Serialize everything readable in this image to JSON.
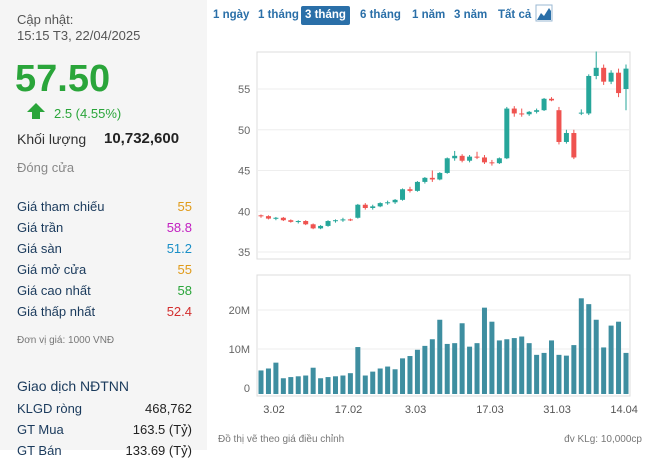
{
  "update": {
    "label": "Cập nhật:",
    "time": "15:15 T3, 22/04/2025"
  },
  "price": "57.50",
  "change": "2.5 (4.55%)",
  "volume": {
    "label": "Khối lượng",
    "value": "10,732,600"
  },
  "status": "Đóng cửa",
  "stats": [
    {
      "label": "Giá tham chiếu",
      "value": "55",
      "color": "#e09b1a"
    },
    {
      "label": "Giá trần",
      "value": "58.8",
      "color": "#c21fc1"
    },
    {
      "label": "Giá sàn",
      "value": "51.2",
      "color": "#1a8fc7"
    },
    {
      "label": "Giá mở cửa",
      "value": "55",
      "color": "#e09b1a"
    },
    {
      "label": "Giá cao nhất",
      "value": "58",
      "color": "#2aa53a"
    },
    {
      "label": "Giá thấp nhất",
      "value": "52.4",
      "color": "#d32f2f"
    }
  ],
  "unit_note": "Đơn vị giá: 1000 VNĐ",
  "foreign": {
    "title": "Giao dịch NĐTNN",
    "rows": [
      {
        "label": "KLGD ròng",
        "value": "468,762"
      },
      {
        "label": "GT Mua",
        "value": "163.5 (Tỷ)"
      },
      {
        "label": "GT Bán",
        "value": "133.69 (Tỷ)"
      }
    ]
  },
  "tabs": [
    "1 ngày",
    "1 tháng",
    "3 tháng",
    "6 tháng",
    "1 năm",
    "3 năm",
    "Tất cả"
  ],
  "active_tab": "3 tháng",
  "footer_left": "Đồ thị vẽ theo giá điều chỉnh",
  "footer_right": "đv KLg: 10,000cp",
  "colors": {
    "up": "#26a69a",
    "down": "#ef5350",
    "volume": "#3e8ea0",
    "accent": "#2a6fa8"
  },
  "chart_data": {
    "type": "candlestick",
    "price_ticks": [
      "55",
      "50",
      "45",
      "40",
      "35"
    ],
    "volume_ticks": [
      "20M",
      "10M",
      "0"
    ],
    "x_ticks": [
      "3.02",
      "17.02",
      "3.03",
      "17.03",
      "31.03",
      "14.04"
    ],
    "candles": [
      [
        39.5,
        39.6,
        39.2,
        39.4
      ],
      [
        39.4,
        39.5,
        39.0,
        39.1
      ],
      [
        39.1,
        39.3,
        38.9,
        39.2
      ],
      [
        39.2,
        39.3,
        38.8,
        38.9
      ],
      [
        38.9,
        39.0,
        38.6,
        38.7
      ],
      [
        38.7,
        38.9,
        38.5,
        38.8
      ],
      [
        38.8,
        38.9,
        38.3,
        38.4
      ],
      [
        38.4,
        38.5,
        37.8,
        37.9
      ],
      [
        37.9,
        38.3,
        37.8,
        38.2
      ],
      [
        38.2,
        38.9,
        38.1,
        38.8
      ],
      [
        38.8,
        39.0,
        38.6,
        38.9
      ],
      [
        38.9,
        39.2,
        38.7,
        39.0
      ],
      [
        39.0,
        39.1,
        38.8,
        38.9
      ],
      [
        39.2,
        40.9,
        39.1,
        40.8
      ],
      [
        40.8,
        41.0,
        40.2,
        40.4
      ],
      [
        40.4,
        40.8,
        40.2,
        40.6
      ],
      [
        40.6,
        41.1,
        40.5,
        41.0
      ],
      [
        41.0,
        41.3,
        40.8,
        41.1
      ],
      [
        41.1,
        41.5,
        40.9,
        41.4
      ],
      [
        41.4,
        42.8,
        41.3,
        42.7
      ],
      [
        42.7,
        43.0,
        42.3,
        42.5
      ],
      [
        42.5,
        43.7,
        42.4,
        43.6
      ],
      [
        43.6,
        44.2,
        43.4,
        44.1
      ],
      [
        44.1,
        45.0,
        43.6,
        43.9
      ],
      [
        43.9,
        44.8,
        43.8,
        44.7
      ],
      [
        44.7,
        46.6,
        44.6,
        46.5
      ],
      [
        46.5,
        47.4,
        46.2,
        46.8
      ],
      [
        46.8,
        47.0,
        46.0,
        46.2
      ],
      [
        46.2,
        46.9,
        46.0,
        46.7
      ],
      [
        46.7,
        47.3,
        46.4,
        46.6
      ],
      [
        46.6,
        46.9,
        45.8,
        46.0
      ],
      [
        46.0,
        46.3,
        45.6,
        45.9
      ],
      [
        45.9,
        46.6,
        45.8,
        46.5
      ],
      [
        46.5,
        52.8,
        46.4,
        52.6
      ],
      [
        52.6,
        52.9,
        51.6,
        52.0
      ],
      [
        52.0,
        52.6,
        51.6,
        51.9
      ],
      [
        51.9,
        52.3,
        51.7,
        52.2
      ],
      [
        52.2,
        52.6,
        52.0,
        52.4
      ],
      [
        52.4,
        53.9,
        52.3,
        53.8
      ],
      [
        53.8,
        54.0,
        53.5,
        53.6
      ],
      [
        52.4,
        52.8,
        48.2,
        48.5
      ],
      [
        48.5,
        50.0,
        48.3,
        49.6
      ],
      [
        49.6,
        50.0,
        46.4,
        46.6
      ],
      [
        52.0,
        52.5,
        51.8,
        52.1
      ],
      [
        52.0,
        56.8,
        51.8,
        56.6
      ],
      [
        56.6,
        59.6,
        56.2,
        57.6
      ],
      [
        57.6,
        58.0,
        55.5,
        55.9
      ],
      [
        55.9,
        57.3,
        55.6,
        57.0
      ],
      [
        57.0,
        57.5,
        54.0,
        54.5
      ],
      [
        55.0,
        58.0,
        52.4,
        57.5
      ]
    ],
    "volume_m": [
      4.5,
      5.0,
      6.5,
      2.5,
      2.8,
      3.0,
      3.2,
      5.2,
      2.5,
      2.8,
      3.0,
      3.2,
      3.8,
      10.5,
      3.2,
      4.2,
      5.0,
      5.5,
      4.8,
      7.6,
      8.2,
      9.8,
      10.8,
      12.5,
      17.5,
      11.3,
      11.5,
      16.6,
      10.6,
      11.5,
      20.6,
      17.0,
      12.2,
      12.5,
      12.8,
      13.2,
      11.5,
      8.5,
      9.0,
      12.2,
      8.5,
      8.3,
      11.0,
      23.0,
      21.5,
      17.5,
      10.4,
      16.0,
      17.0,
      9.0
    ]
  }
}
